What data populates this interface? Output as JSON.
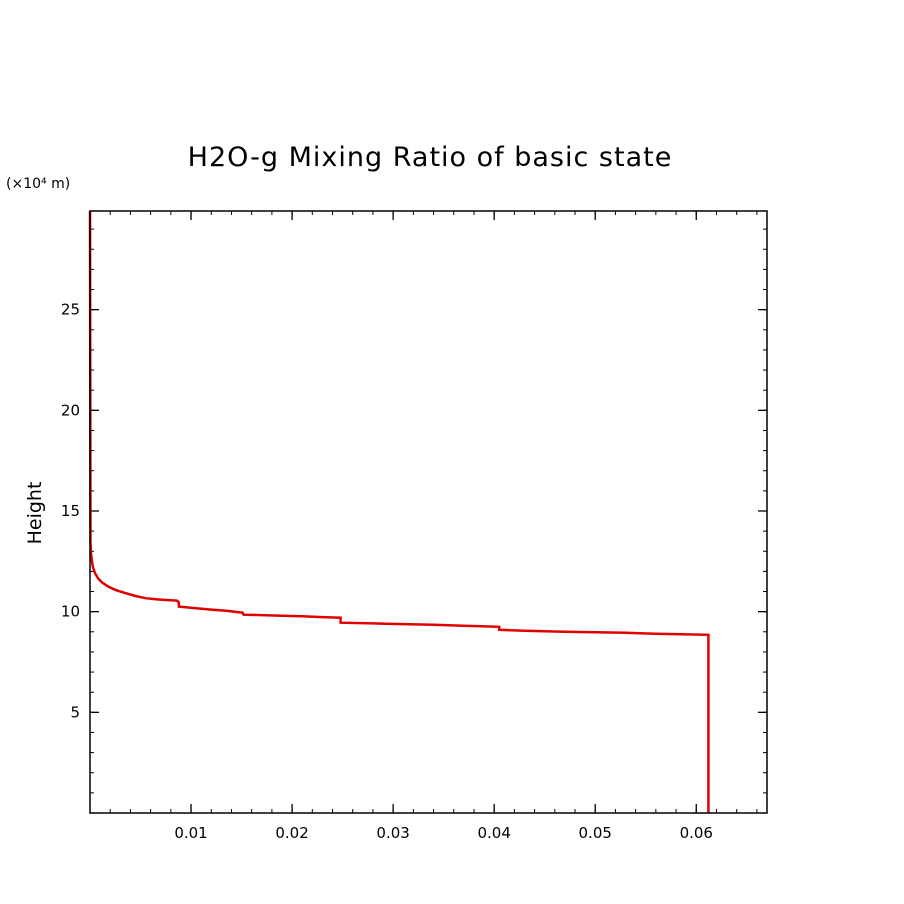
{
  "chart_data": {
    "type": "line",
    "title": "H2O-g Mixing Ratio of basic state",
    "xlabel": "",
    "ylabel": "Height",
    "y_unit_label": "(×10⁴ m)",
    "xlim": [
      0,
      0.067
    ],
    "ylim": [
      0,
      29.9
    ],
    "x_ticks": [
      {
        "value": 0.01,
        "label": "0.01"
      },
      {
        "value": 0.02,
        "label": "0.02"
      },
      {
        "value": 0.03,
        "label": "0.03"
      },
      {
        "value": 0.04,
        "label": "0.04"
      },
      {
        "value": 0.05,
        "label": "0.05"
      },
      {
        "value": 0.06,
        "label": "0.06"
      }
    ],
    "y_ticks": [
      {
        "value": 5,
        "label": "5"
      },
      {
        "value": 10,
        "label": "10"
      },
      {
        "value": 15,
        "label": "15"
      },
      {
        "value": 20,
        "label": "20"
      },
      {
        "value": 25,
        "label": "25"
      }
    ],
    "x_minor_step": 0.002,
    "y_minor_step": 1,
    "grid": false,
    "line_color": "#e00000",
    "series": [
      {
        "x": [
          0.0612,
          0.0612,
          0.056,
          0.053,
          0.047,
          0.043,
          0.0405,
          0.0405,
          0.037,
          0.034,
          0.031,
          0.0275,
          0.0248,
          0.0248,
          0.0248,
          0.023,
          0.021,
          0.019,
          0.017,
          0.0152,
          0.0151,
          0.0135,
          0.012,
          0.0105,
          0.0088,
          0.0088,
          0.0086,
          0.0075,
          0.0065,
          0.0055,
          0.0045,
          0.0035,
          0.0025,
          0.0018,
          0.0012,
          0.0008,
          0.0005,
          0.0003,
          0.0002,
          0.0001,
          5e-05,
          0.0
        ],
        "y": [
          0.0,
          8.85,
          8.9,
          8.95,
          9.0,
          9.05,
          9.1,
          9.25,
          9.3,
          9.35,
          9.38,
          9.42,
          9.45,
          9.55,
          9.7,
          9.73,
          9.77,
          9.8,
          9.83,
          9.85,
          9.95,
          10.05,
          10.1,
          10.17,
          10.25,
          10.45,
          10.55,
          10.58,
          10.62,
          10.67,
          10.78,
          10.92,
          11.08,
          11.25,
          11.45,
          11.65,
          11.9,
          12.2,
          12.5,
          12.9,
          13.4,
          29.9
        ]
      }
    ]
  }
}
